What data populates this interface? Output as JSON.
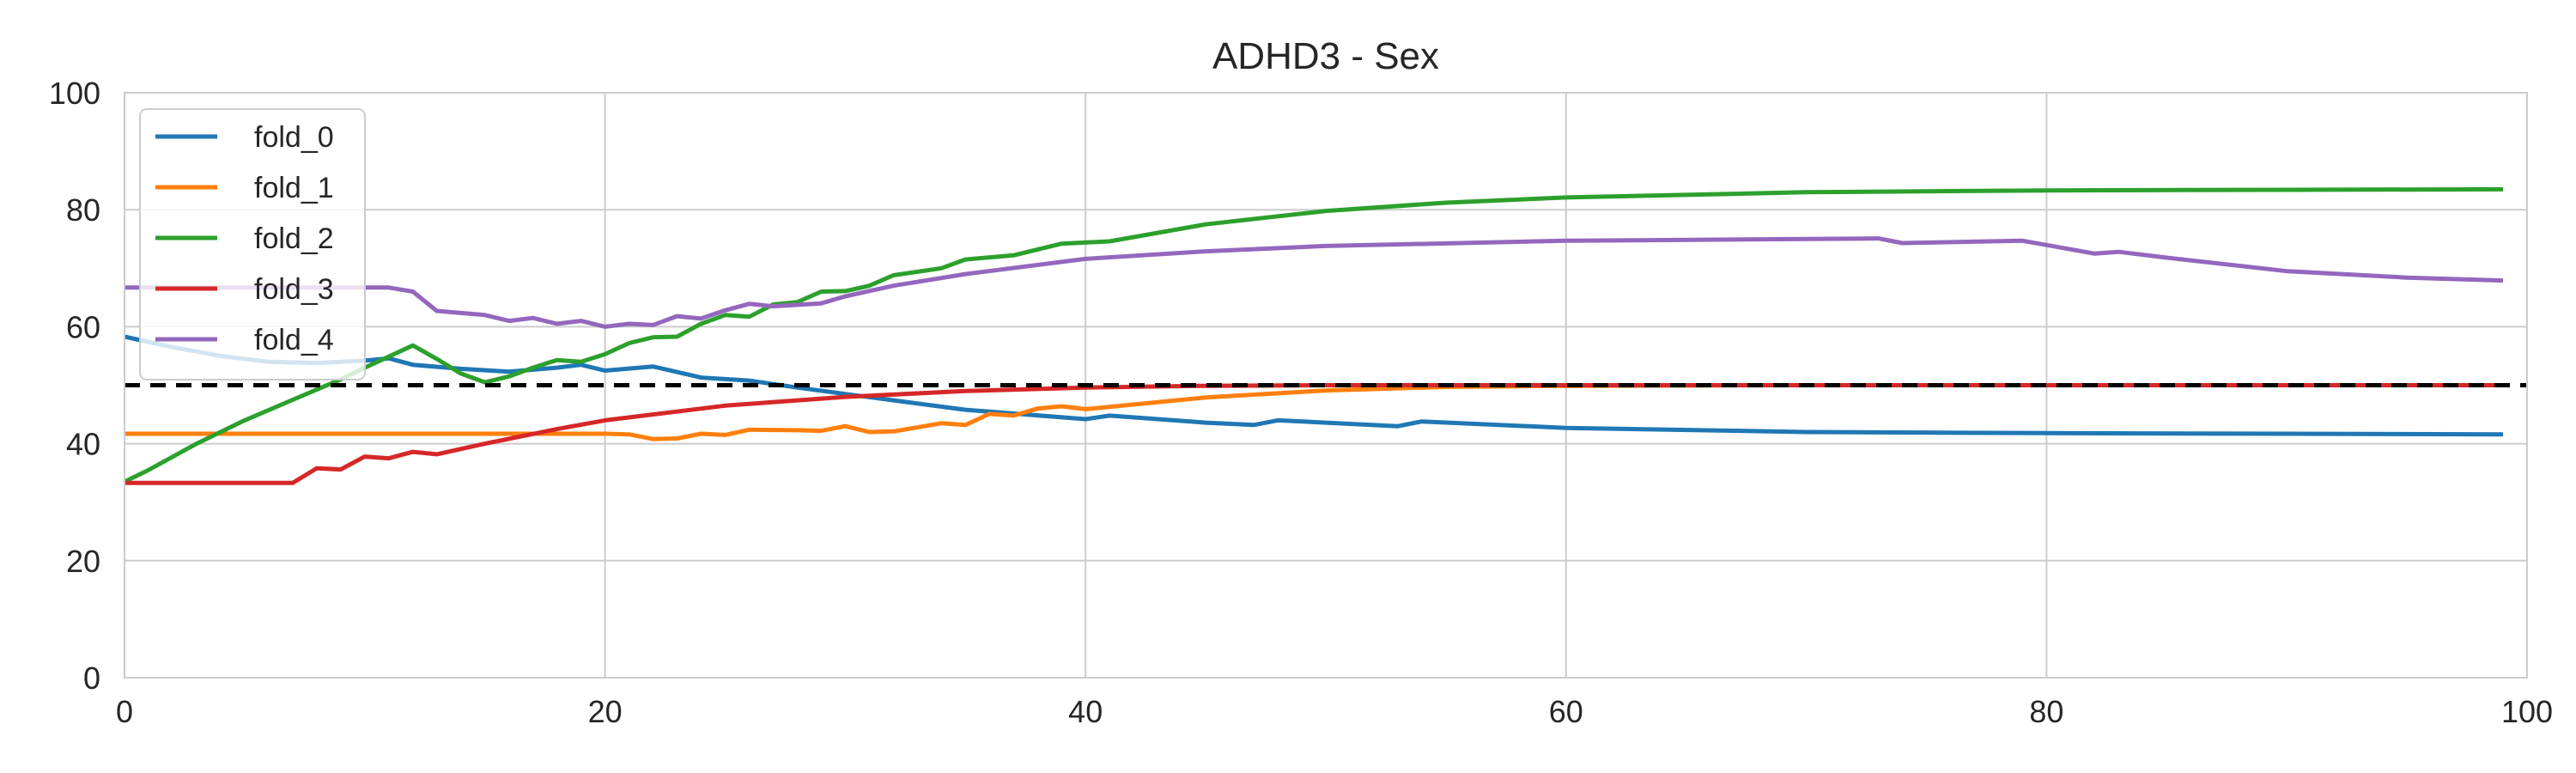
{
  "chart_data": {
    "type": "line",
    "title": "ADHD3 - Sex",
    "xlabel": "",
    "ylabel": "",
    "xlim": [
      0,
      100
    ],
    "ylim": [
      0,
      100
    ],
    "xticks": [
      0,
      20,
      40,
      60,
      80,
      100
    ],
    "yticks": [
      0,
      20,
      40,
      60,
      80,
      100
    ],
    "grid": true,
    "legend_position": "top-left",
    "reference_line": {
      "y": 50,
      "style": "dashed",
      "color": "#000000"
    },
    "series": [
      {
        "name": "fold_0",
        "color": "#1f77b4",
        "points": [
          [
            0,
            58.3
          ],
          [
            2,
            56.5
          ],
          [
            4,
            55
          ],
          [
            6,
            54
          ],
          [
            8,
            53.8
          ],
          [
            10,
            54.2
          ],
          [
            11,
            54.6
          ],
          [
            12,
            53.5
          ],
          [
            14,
            52.8
          ],
          [
            16,
            52.3
          ],
          [
            18,
            53
          ],
          [
            19,
            53.5
          ],
          [
            20,
            52.5
          ],
          [
            22,
            53.2
          ],
          [
            24,
            51.3
          ],
          [
            26,
            50.8
          ],
          [
            28,
            49.6
          ],
          [
            30,
            48.5
          ],
          [
            35,
            45.8
          ],
          [
            40,
            44.2
          ],
          [
            41,
            44.8
          ],
          [
            45,
            43.6
          ],
          [
            47,
            43.2
          ],
          [
            48,
            44
          ],
          [
            50,
            43.6
          ],
          [
            53,
            43
          ],
          [
            54,
            43.8
          ],
          [
            60,
            42.7
          ],
          [
            70,
            42
          ],
          [
            80,
            41.8
          ],
          [
            90,
            41.7
          ],
          [
            99,
            41.6
          ]
        ]
      },
      {
        "name": "fold_1",
        "color": "#ff7f0e",
        "points": [
          [
            0,
            41.7
          ],
          [
            10,
            41.7
          ],
          [
            20,
            41.7
          ],
          [
            21,
            41.6
          ],
          [
            22,
            40.8
          ],
          [
            23,
            40.9
          ],
          [
            24,
            41.7
          ],
          [
            25,
            41.5
          ],
          [
            26,
            42.4
          ],
          [
            28,
            42.3
          ],
          [
            29,
            42.2
          ],
          [
            30,
            43
          ],
          [
            31,
            42
          ],
          [
            32,
            42.1
          ],
          [
            34,
            43.5
          ],
          [
            35,
            43.2
          ],
          [
            36,
            45.1
          ],
          [
            37,
            44.8
          ],
          [
            38,
            46
          ],
          [
            39,
            46.4
          ],
          [
            40,
            45.9
          ],
          [
            45,
            47.9
          ],
          [
            50,
            49.1
          ],
          [
            55,
            49.7
          ],
          [
            60,
            49.9
          ],
          [
            70,
            50
          ],
          [
            99,
            50
          ]
        ]
      },
      {
        "name": "fold_2",
        "color": "#2ca02c",
        "points": [
          [
            0,
            33.5
          ],
          [
            1,
            35.5
          ],
          [
            3,
            40
          ],
          [
            5,
            44
          ],
          [
            7,
            47.5
          ],
          [
            9,
            51
          ],
          [
            10,
            53
          ],
          [
            12,
            56.8
          ],
          [
            13,
            54.5
          ],
          [
            14,
            52
          ],
          [
            15,
            50.5
          ],
          [
            16,
            51.5
          ],
          [
            17,
            53
          ],
          [
            18,
            54.3
          ],
          [
            19,
            54
          ],
          [
            20,
            55.3
          ],
          [
            21,
            57.2
          ],
          [
            22,
            58.2
          ],
          [
            23,
            58.3
          ],
          [
            24,
            60.5
          ],
          [
            25,
            62
          ],
          [
            26,
            61.7
          ],
          [
            27,
            63.8
          ],
          [
            28,
            64.2
          ],
          [
            29,
            66
          ],
          [
            30,
            66.1
          ],
          [
            31,
            67
          ],
          [
            32,
            68.8
          ],
          [
            34,
            70
          ],
          [
            35,
            71.5
          ],
          [
            37,
            72.2
          ],
          [
            39,
            74.2
          ],
          [
            41,
            74.6
          ],
          [
            45,
            77.5
          ],
          [
            50,
            79.8
          ],
          [
            55,
            81.2
          ],
          [
            60,
            82.1
          ],
          [
            70,
            83
          ],
          [
            80,
            83.3
          ],
          [
            90,
            83.4
          ],
          [
            99,
            83.5
          ]
        ]
      },
      {
        "name": "fold_3",
        "color": "#d62728",
        "points": [
          [
            0,
            33.3
          ],
          [
            7,
            33.3
          ],
          [
            8,
            35.8
          ],
          [
            9,
            35.6
          ],
          [
            10,
            37.8
          ],
          [
            11,
            37.5
          ],
          [
            12,
            38.6
          ],
          [
            13,
            38.2
          ],
          [
            15,
            40
          ],
          [
            18,
            42.5
          ],
          [
            20,
            44
          ],
          [
            25,
            46.5
          ],
          [
            30,
            48
          ],
          [
            35,
            49
          ],
          [
            40,
            49.6
          ],
          [
            45,
            49.9
          ],
          [
            50,
            50
          ],
          [
            99,
            50
          ]
        ]
      },
      {
        "name": "fold_4",
        "color": "#9467bd",
        "points": [
          [
            0,
            66.7
          ],
          [
            11,
            66.7
          ],
          [
            12,
            66
          ],
          [
            13,
            62.7
          ],
          [
            15,
            62
          ],
          [
            16,
            61
          ],
          [
            17,
            61.5
          ],
          [
            18,
            60.5
          ],
          [
            19,
            61
          ],
          [
            20,
            60
          ],
          [
            21,
            60.5
          ],
          [
            22,
            60.3
          ],
          [
            23,
            61.8
          ],
          [
            24,
            61.4
          ],
          [
            25,
            62.8
          ],
          [
            26,
            63.9
          ],
          [
            27,
            63.5
          ],
          [
            29,
            64
          ],
          [
            30,
            65.2
          ],
          [
            32,
            67
          ],
          [
            35,
            69
          ],
          [
            40,
            71.6
          ],
          [
            45,
            72.9
          ],
          [
            50,
            73.8
          ],
          [
            60,
            74.7
          ],
          [
            70,
            75
          ],
          [
            73,
            75.1
          ],
          [
            74,
            74.3
          ],
          [
            79,
            74.7
          ],
          [
            82,
            72.5
          ],
          [
            83,
            72.8
          ],
          [
            85,
            71.8
          ],
          [
            90,
            69.5
          ],
          [
            95,
            68.4
          ],
          [
            99,
            67.9
          ]
        ]
      }
    ]
  }
}
